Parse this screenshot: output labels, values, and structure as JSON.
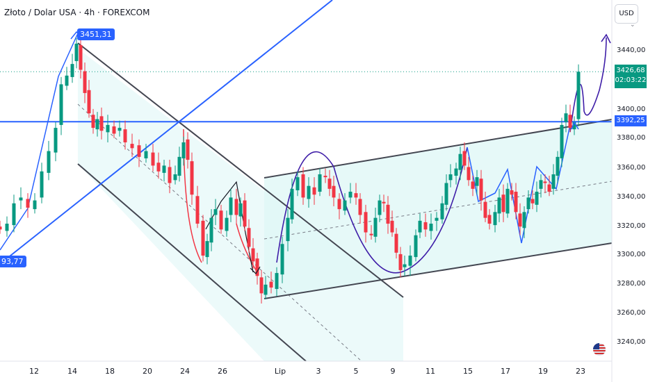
{
  "header": {
    "symbol_title": "Złoto / Dolar USA · 4h · FOREXCOM",
    "currency": "USD"
  },
  "price_axis": {
    "ticks": [
      "3440,00",
      "3400,00",
      "3380,00",
      "3360,00",
      "3340,00",
      "3320,00",
      "3300,00",
      "3280,00",
      "3260,00",
      "3240,00"
    ],
    "current_price": "3426,68",
    "countdown": "02:03:22",
    "level_price": "3392,25"
  },
  "date_axis": {
    "labels": [
      "12",
      "14",
      "18",
      "20",
      "24",
      "26",
      "Lip",
      "3",
      "5",
      "9",
      "11",
      "15",
      "17",
      "19",
      "23"
    ]
  },
  "annotations": {
    "high_label": "3451,31",
    "low_label": "93,77"
  },
  "icons": {
    "currency_dropdown": "chevron-down-icon",
    "event_marker": "us-flag-icon"
  },
  "colors": {
    "up": "#089981",
    "down": "#f23645",
    "trendline": "#2962ff",
    "channel": "#434651",
    "fill": "#e0f7f6",
    "wave": "#3f1ea8"
  },
  "chart_data": {
    "type": "candlestick",
    "title": "Złoto / Dolar USA · 4h · FOREXCOM",
    "ylim": [
      3232,
      3478
    ],
    "y_ticks": [
      3440,
      3400,
      3380,
      3360,
      3340,
      3320,
      3300,
      3280,
      3260,
      3240
    ],
    "x_tick_labels": [
      "12",
      "14",
      "18",
      "20",
      "24",
      "26",
      "Lip",
      "3",
      "5",
      "9",
      "11",
      "15",
      "17",
      "19",
      "23"
    ],
    "horizontal_level": 3392.25,
    "last_price": 3426.68,
    "marked_high": 3451.31,
    "close_path": [
      [
        0,
        3318
      ],
      [
        10,
        3322
      ],
      [
        20,
        3336
      ],
      [
        30,
        3340
      ],
      [
        40,
        3333
      ],
      [
        50,
        3338
      ],
      [
        60,
        3358
      ],
      [
        70,
        3372
      ],
      [
        80,
        3388
      ],
      [
        88,
        3418
      ],
      [
        96,
        3424
      ],
      [
        104,
        3432
      ],
      [
        110,
        3446
      ],
      [
        116,
        3428
      ],
      [
        122,
        3412
      ],
      [
        128,
        3398
      ],
      [
        134,
        3388
      ],
      [
        140,
        3394
      ],
      [
        146,
        3386
      ],
      [
        155,
        3390
      ],
      [
        164,
        3384
      ],
      [
        172,
        3388
      ],
      [
        180,
        3378
      ],
      [
        190,
        3374
      ],
      [
        200,
        3368
      ],
      [
        210,
        3372
      ],
      [
        220,
        3362
      ],
      [
        228,
        3358
      ],
      [
        236,
        3362
      ],
      [
        244,
        3350
      ],
      [
        252,
        3356
      ],
      [
        258,
        3368
      ],
      [
        264,
        3378
      ],
      [
        270,
        3366
      ],
      [
        276,
        3342
      ],
      [
        284,
        3322
      ],
      [
        292,
        3300
      ],
      [
        298,
        3310
      ],
      [
        304,
        3326
      ],
      [
        310,
        3332
      ],
      [
        318,
        3318
      ],
      [
        326,
        3326
      ],
      [
        332,
        3340
      ],
      [
        340,
        3328
      ],
      [
        346,
        3336
      ],
      [
        352,
        3320
      ],
      [
        358,
        3306
      ],
      [
        364,
        3296
      ],
      [
        370,
        3286
      ],
      [
        376,
        3274
      ],
      [
        382,
        3280
      ],
      [
        390,
        3278
      ],
      [
        398,
        3288
      ],
      [
        406,
        3308
      ],
      [
        414,
        3326
      ],
      [
        420,
        3346
      ],
      [
        428,
        3354
      ],
      [
        436,
        3340
      ],
      [
        444,
        3348
      ],
      [
        452,
        3342
      ],
      [
        460,
        3356
      ],
      [
        468,
        3354
      ],
      [
        474,
        3346
      ],
      [
        480,
        3340
      ],
      [
        488,
        3332
      ],
      [
        496,
        3338
      ],
      [
        504,
        3344
      ],
      [
        512,
        3340
      ],
      [
        518,
        3328
      ],
      [
        526,
        3316
      ],
      [
        534,
        3314
      ],
      [
        540,
        3326
      ],
      [
        546,
        3338
      ],
      [
        552,
        3336
      ],
      [
        558,
        3322
      ],
      [
        564,
        3316
      ],
      [
        570,
        3302
      ],
      [
        576,
        3290
      ],
      [
        582,
        3294
      ],
      [
        590,
        3300
      ],
      [
        598,
        3314
      ],
      [
        604,
        3324
      ],
      [
        612,
        3318
      ],
      [
        620,
        3322
      ],
      [
        628,
        3326
      ],
      [
        636,
        3336
      ],
      [
        642,
        3350
      ],
      [
        648,
        3356
      ],
      [
        656,
        3360
      ],
      [
        662,
        3370
      ],
      [
        668,
        3362
      ],
      [
        674,
        3352
      ],
      [
        680,
        3346
      ],
      [
        686,
        3354
      ],
      [
        692,
        3338
      ],
      [
        698,
        3326
      ],
      [
        704,
        3322
      ],
      [
        712,
        3330
      ],
      [
        718,
        3340
      ],
      [
        724,
        3330
      ],
      [
        730,
        3346
      ],
      [
        736,
        3342
      ],
      [
        742,
        3330
      ],
      [
        748,
        3320
      ],
      [
        754,
        3330
      ],
      [
        760,
        3340
      ],
      [
        766,
        3336
      ],
      [
        772,
        3344
      ],
      [
        778,
        3352
      ],
      [
        784,
        3350
      ],
      [
        790,
        3344
      ],
      [
        796,
        3356
      ],
      [
        802,
        3368
      ],
      [
        808,
        3390
      ],
      [
        814,
        3398
      ],
      [
        820,
        3388
      ],
      [
        826,
        3392
      ],
      [
        832,
        3426.68
      ]
    ]
  }
}
